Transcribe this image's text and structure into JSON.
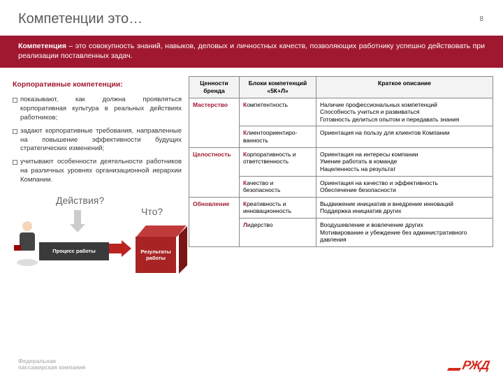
{
  "page": {
    "title": "Компетенции это…",
    "number": "8"
  },
  "definition": {
    "bold": "Компетенция",
    "rest": " – это совокупность знаний, навыков, деловых и личностных качеств, позволяющих работнику успешно действовать при реализации поставленных задач."
  },
  "left": {
    "heading": "Корпоративные компетенции:",
    "bullets": [
      "показывают, как должна проявляться корпоративная культура в реальных действиях работников;",
      "задают корпоративные требования, направленные на повышение эффективности будущих стратегических изменений;",
      "учитывают особенности деятельности работников на различных уровнях организационной иерархии Компании."
    ],
    "q_actions": "Действия?",
    "q_what": "Что?",
    "process_box": "Процесс работы",
    "results_box": "Результаты работы"
  },
  "table": {
    "headers": [
      "Ценности бренда",
      "Блоки компетенций «5К+Л»",
      "Краткое описание"
    ],
    "rows": [
      {
        "value": "Мастерство",
        "value_rowspan": 2,
        "block_hl": "К",
        "block_rest": "омпетентность",
        "desc": "Наличие профессиональных компетенций\nСпособность учиться и развиваться\nГотовность делиться опытом и передавать знания"
      },
      {
        "value": "",
        "block_hl": "К",
        "block_rest": "лиентоориентиро-ванность",
        "desc": "Ориентация на пользу для клиентов Компании"
      },
      {
        "value": "Целостность",
        "value_rowspan": 2,
        "block_hl": "К",
        "block_rest": "орпоративность и ответственность",
        "desc": "Ориентация на интересы компании\nУмение работать в команде\nНацеленность на результат"
      },
      {
        "value": "",
        "block_hl": "К",
        "block_rest": "ачество и безопасность",
        "desc": "Ориентация на качество и эффективность\nОбеспечение безопасности"
      },
      {
        "value": "Обновление",
        "value_rowspan": 2,
        "block_hl": "К",
        "block_rest": "реативность и инновационность",
        "desc": "Выдвижение инициатив и внедрение инноваций\nПоддержка инициатив других"
      },
      {
        "value": "",
        "block_hl": "Л",
        "block_rest": "идерство",
        "desc": "Воодушевление и вовлечение других\nМотивирование и убеждение без административного давления"
      }
    ]
  },
  "footer": {
    "company": "Федеральная\nпассажирская компания",
    "logo": "РЖД"
  },
  "colors": {
    "accent": "#a01830",
    "logo": "#d52b1e",
    "dark": "#3a3a3a"
  }
}
